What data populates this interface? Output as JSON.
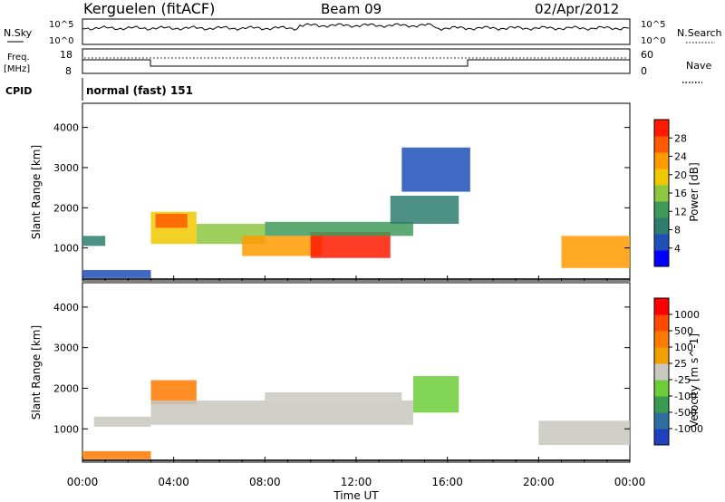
{
  "header": {
    "station": "Kerguelen (fitACF)",
    "beam": "Beam 09",
    "date": "02/Apr/2012"
  },
  "strip": {
    "nsky_label": "N.Sky",
    "nsearch_label": "N.Search",
    "nsky_ticks": [
      "10^5",
      "10^0"
    ],
    "nsearch_ticks": [
      "10^5",
      "10^0"
    ],
    "freq_label_1": "Freq.",
    "freq_label_2": "[MHz]",
    "freq_ticks": [
      "18",
      "8"
    ],
    "nave_label": "Nave",
    "nave_ticks": [
      "60",
      "0"
    ],
    "cpid_label": "CPID",
    "cpid_value": "normal (fast) 151"
  },
  "colors": {
    "power": [
      "#0000ff",
      "#1f4fb8",
      "#2e7d6e",
      "#3f9a5a",
      "#8dc63f",
      "#f0c800",
      "#ff9a00",
      "#ff5a00",
      "#ff1a00"
    ],
    "velocity": [
      "#2040c0",
      "#2e6fa0",
      "#3a9a50",
      "#6ccc3a",
      "#c8c8c0",
      "#f0a000",
      "#ff7a00",
      "#ff4a00",
      "#ff0000"
    ]
  },
  "chart_data": [
    {
      "type": "heatmap",
      "name": "power-panel",
      "title": "",
      "xlabel": "",
      "ylabel": "Slant Range [km]",
      "xlim": [
        "00:00",
        "24:00"
      ],
      "ylim": [
        180,
        4600
      ],
      "x_ticks": [
        "00:00",
        "04:00",
        "08:00",
        "12:00",
        "16:00",
        "20:00",
        "00:00"
      ],
      "y_ticks": [
        1000,
        2000,
        3000,
        4000
      ],
      "colorbar": {
        "label": "Power [dB]",
        "ticks": [
          "28",
          "24",
          "20",
          "16",
          "12",
          "8",
          "4"
        ]
      },
      "regions": [
        {
          "t0": 0.0,
          "t1": 1.0,
          "r0": 1050,
          "r1": 1300,
          "level": 2
        },
        {
          "t0": 0.0,
          "t1": 3.0,
          "r0": 250,
          "r1": 450,
          "level": 1
        },
        {
          "t0": 3.0,
          "t1": 5.0,
          "r0": 1100,
          "r1": 1900,
          "level": 5
        },
        {
          "t0": 3.2,
          "t1": 4.6,
          "r0": 1500,
          "r1": 1850,
          "level": 7
        },
        {
          "t0": 5.0,
          "t1": 8.0,
          "r0": 1100,
          "r1": 1600,
          "level": 4
        },
        {
          "t0": 7.0,
          "t1": 10.5,
          "r0": 800,
          "r1": 1300,
          "level": 6
        },
        {
          "t0": 10.0,
          "t1": 13.5,
          "r0": 750,
          "r1": 1400,
          "level": 8
        },
        {
          "t0": 8.0,
          "t1": 14.5,
          "r0": 1300,
          "r1": 1650,
          "level": 3
        },
        {
          "t0": 13.5,
          "t1": 16.5,
          "r0": 1600,
          "r1": 2300,
          "level": 2
        },
        {
          "t0": 14.0,
          "t1": 17.0,
          "r0": 2400,
          "r1": 3500,
          "level": 1
        },
        {
          "t0": 21.0,
          "t1": 24.0,
          "r0": 500,
          "r1": 1300,
          "level": 6
        }
      ]
    },
    {
      "type": "heatmap",
      "name": "velocity-panel",
      "title": "",
      "xlabel": "Time UT",
      "ylabel": "Slant Range [km]",
      "xlim": [
        "00:00",
        "24:00"
      ],
      "ylim": [
        180,
        4600
      ],
      "x_ticks": [
        "00:00",
        "04:00",
        "08:00",
        "12:00",
        "16:00",
        "20:00",
        "00:00"
      ],
      "y_ticks": [
        1000,
        2000,
        3000,
        4000
      ],
      "colorbar": {
        "label": "Velocity [m s^-1]",
        "ticks": [
          "1000",
          "500",
          "100",
          "25",
          "-25",
          "-100",
          "-500",
          "-1000"
        ]
      },
      "regions": [
        {
          "t0": 0.0,
          "t1": 3.0,
          "r0": 250,
          "r1": 450,
          "level": 6
        },
        {
          "t0": 0.5,
          "t1": 3.0,
          "r0": 1050,
          "r1": 1300,
          "level": 4
        },
        {
          "t0": 3.0,
          "t1": 5.0,
          "r0": 1600,
          "r1": 2200,
          "level": 6
        },
        {
          "t0": 3.0,
          "t1": 14.5,
          "r0": 1100,
          "r1": 1700,
          "level": 4
        },
        {
          "t0": 8.0,
          "t1": 14.0,
          "r0": 1700,
          "r1": 1900,
          "level": 4
        },
        {
          "t0": 14.5,
          "t1": 16.5,
          "r0": 1400,
          "r1": 2300,
          "level": 3
        },
        {
          "t0": 20.0,
          "t1": 24.0,
          "r0": 600,
          "r1": 1200,
          "level": 4
        }
      ]
    }
  ]
}
